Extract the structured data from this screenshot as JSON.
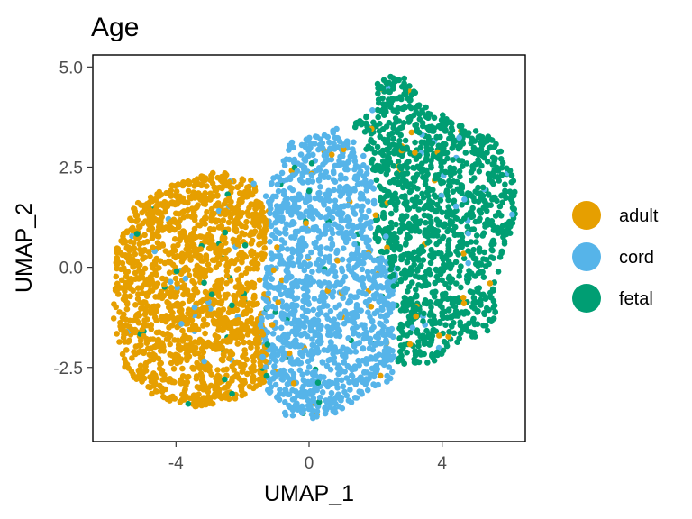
{
  "chart_data": {
    "type": "scatter",
    "title": "Age",
    "xlabel": "UMAP_1",
    "ylabel": "UMAP_2",
    "xlim": [
      -6.5,
      6.5
    ],
    "ylim": [
      -4.35,
      5.3
    ],
    "xticks": [
      {
        "value": -4,
        "label": "-4"
      },
      {
        "value": 0,
        "label": "0"
      },
      {
        "value": 4,
        "label": "4"
      }
    ],
    "yticks": [
      {
        "value": -2.5,
        "label": "-2.5"
      },
      {
        "value": 0,
        "label": "0.0"
      },
      {
        "value": 2.5,
        "label": "2.5"
      },
      {
        "value": 5,
        "label": "5.0"
      }
    ],
    "grid": false,
    "legend_position": "right",
    "series": [
      {
        "name": "adult",
        "color": "#E69F00",
        "region": [
          [
            -2.7,
            2.4
          ],
          [
            -1.7,
            2.2
          ],
          [
            -1.2,
            1.0
          ],
          [
            -1.5,
            -0.5
          ],
          [
            -1.2,
            -2.8
          ],
          [
            -2.2,
            -3.3
          ],
          [
            -3.5,
            -3.5
          ],
          [
            -4.8,
            -3.2
          ],
          [
            -5.6,
            -2.5
          ],
          [
            -5.9,
            -1.2
          ],
          [
            -5.8,
            0.6
          ],
          [
            -5.2,
            1.6
          ],
          [
            -4.0,
            2.1
          ]
        ],
        "count": 1500
      },
      {
        "name": "cord",
        "color": "#56B4E9",
        "region": [
          [
            -0.6,
            3.1
          ],
          [
            0.9,
            3.5
          ],
          [
            1.6,
            2.9
          ],
          [
            2.0,
            1.8
          ],
          [
            1.8,
            0.5
          ],
          [
            2.6,
            0.0
          ],
          [
            2.6,
            -1.6
          ],
          [
            2.5,
            -2.8
          ],
          [
            1.6,
            -3.2
          ],
          [
            0.5,
            -3.8
          ],
          [
            -0.7,
            -3.7
          ],
          [
            -1.3,
            -3.0
          ],
          [
            -1.5,
            -1.5
          ],
          [
            -1.2,
            0.5
          ],
          [
            -1.3,
            1.8
          ]
        ],
        "count": 1300
      },
      {
        "name": "fetal",
        "color": "#009E73",
        "region": [
          [
            2.1,
            4.8
          ],
          [
            3.0,
            4.8
          ],
          [
            3.3,
            4.2
          ],
          [
            4.2,
            3.7
          ],
          [
            5.4,
            3.3
          ],
          [
            6.2,
            2.5
          ],
          [
            6.2,
            1.2
          ],
          [
            5.7,
            0.0
          ],
          [
            5.6,
            -1.5
          ],
          [
            5.0,
            -1.8
          ],
          [
            4.3,
            -2.0
          ],
          [
            3.5,
            -2.5
          ],
          [
            2.6,
            -2.4
          ],
          [
            2.7,
            -1.2
          ],
          [
            2.3,
            0.0
          ],
          [
            1.9,
            0.6
          ],
          [
            2.1,
            2.0
          ],
          [
            1.6,
            3.2
          ],
          [
            1.2,
            3.5
          ],
          [
            1.9,
            3.9
          ]
        ],
        "count": 1200
      }
    ]
  }
}
